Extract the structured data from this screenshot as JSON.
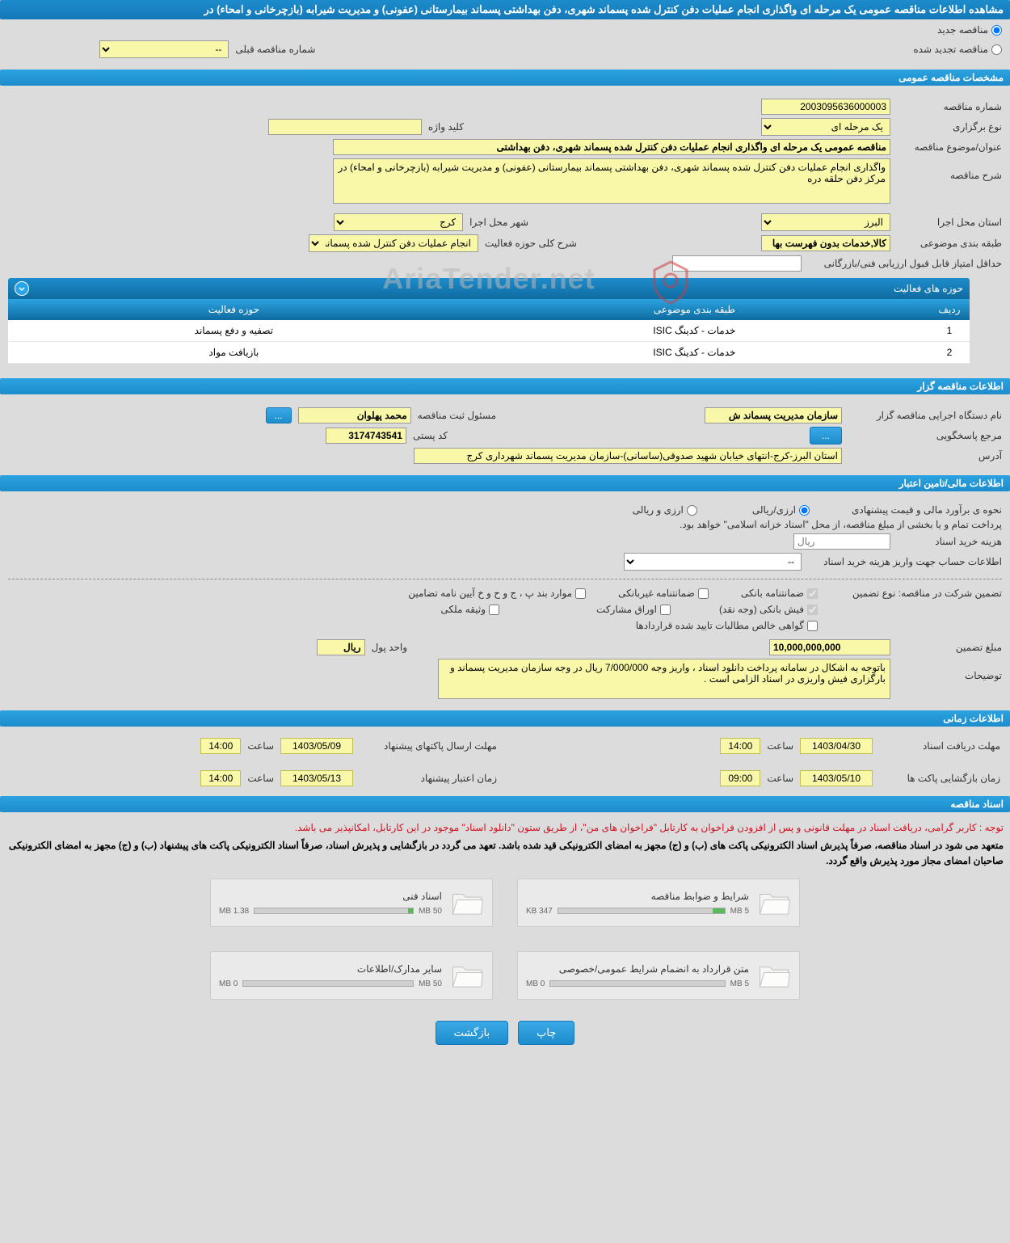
{
  "pageTitle": "مشاهده اطلاعات مناقصه عمومی یک مرحله ای واگذاری انجام عملیات دفن کنترل شده پسماند شهری، دفن بهداشتی پسماند بیمارستانی (عفونی) و مدیریت شیرابه (بازچرخانی و امحاء) در",
  "renewal": {
    "newLabel": "مناقصه جدید",
    "renewedLabel": "مناقصه تجدید شده",
    "prevNumberLabel": "شماره مناقصه قبلی",
    "prevNumberValue": "--"
  },
  "sections": {
    "general": "مشخصات مناقصه عمومی",
    "organizer": "اطلاعات مناقصه گزار",
    "financial": "اطلاعات مالی/تامین اعتبار",
    "timing": "اطلاعات زمانی",
    "docs": "اسناد مناقصه"
  },
  "general": {
    "tenderNoLabel": "شماره مناقصه",
    "tenderNo": "2003095636000003",
    "holdTypeLabel": "نوع برگزاری",
    "holdType": "یک مرحله ای",
    "keywordLabel": "کلید واژه",
    "keyword": "",
    "subjectLabel": "عنوان/موضوع مناقصه",
    "subject": "مناقصه عمومی یک مرحله ای واگذاری انجام عملیات دفن کنترل شده پسماند شهری، دفن بهداشتی",
    "descLabel": "شرح مناقصه",
    "desc": "واگذاری انجام عملیات دفن کنترل شده پسماند شهری، دفن بهداشتی پسماند بیمارستانی (عفونی) و مدیریت شیرابه (بازچرخانی و امحاء) در مرکز دفن حلقه دره",
    "provinceLabel": "استان محل اجرا",
    "province": "البرز",
    "cityLabel": "شهر محل اجرا",
    "city": "کرج",
    "classLabel": "طبقه بندی موضوعی",
    "classValue": "کالا,خدمات بدون فهرست بها",
    "activityGeneralLabel": "شرح کلی حوزه فعالیت",
    "activityGeneral": "انجام عملیات دفن کنترل شده پسماند عادی و دفن",
    "minScoreLabel": "حداقل امتیاز قابل قبول ارزیابی فنی/بازرگانی",
    "minScore": ""
  },
  "activityPanel": {
    "title": "حوزه های فعالیت",
    "cols": {
      "row": "ردیف",
      "class": "طبقه بندی موضوعی",
      "field": "حوزه فعالیت"
    },
    "rows": [
      {
        "n": "1",
        "class": "خدمات - کدینگ ISIC",
        "field": "تصفیه و دفع پسماند"
      },
      {
        "n": "2",
        "class": "خدمات - کدینگ ISIC",
        "field": "بازیافت مواد"
      }
    ]
  },
  "organizer": {
    "orgLabel": "نام دستگاه اجرایی مناقصه گزار",
    "org": "سازمان مدیریت پسماند ش",
    "registrarLabel": "مسئول ثبت مناقصه",
    "registrar": "محمد پهلوان",
    "registrarBtn": "...",
    "responderLabel": "مرجع پاسخگویی",
    "responderBtn": "...",
    "postalLabel": "کد پستی",
    "postal": "3174743541",
    "addressLabel": "آدرس",
    "address": "استان البرز-کرج-انتهای خیابان شهید صدوقی(ساسانی)-سازمان مدیریت پسماند شهرداری کرج"
  },
  "financial": {
    "estimateLabel": "نحوه ی برآورد مالی و قیمت پیشنهادی",
    "rialOpt": "ارزی/ریالی",
    "currencyOpt": "ارزی و ریالی",
    "paymentNote": "پرداخت تمام و یا بخشی از مبلغ مناقصه، از محل \"اسناد خزانه اسلامی\" خواهد بود.",
    "docCostLabel": "هزینه خرید اسناد",
    "docCostUnit": "ریال",
    "accountInfoLabel": "اطلاعات حساب جهت واریز هزینه خرید اسناد",
    "accountInfoValue": "--",
    "guaranteeTypeLabel": "تضمین شرکت در مناقصه:    نوع تضمین",
    "chk": {
      "bankGuarantee": "ضمانتنامه بانکی",
      "nonBankGuarantee": "ضمانتنامه غیربانکی",
      "guaranteeTerms": "موارد بند پ ، ج و ح و خ آیین نامه تضامین",
      "bankReceipt": "فیش بانکی (وجه نقد)",
      "bonds": "اوراق مشارکت",
      "propertyDoc": "وثیقه ملکی",
      "netClaims": "گواهی خالص مطالبات تایید شده قراردادها"
    },
    "guaranteeAmountLabel": "مبلغ تضمین",
    "guaranteeAmount": "10,000,000,000",
    "unitLabel": "واحد پول",
    "unit": "ریال",
    "notesLabel": "توضیحات",
    "notes": "باتوجه به اشکال در سامانه پرداخت دانلود اسناد ، واریز وجه 7/000/000 ریال در وجه سازمان مدیریت پسماند و بارگزاری فیش واریزی در اسناد الزامی است ."
  },
  "timing": {
    "docReceiveLabel": "مهلت دریافت اسناد",
    "docReceiveDate": "1403/04/30",
    "docReceiveTime": "14:00",
    "packetSendLabel": "مهلت ارسال پاکتهای پیشنهاد",
    "packetSendDate": "1403/05/09",
    "packetSendTime": "14:00",
    "openLabel": "زمان بازگشایی پاکت ها",
    "openDate": "1403/05/10",
    "openTime": "09:00",
    "validLabel": "زمان اعتبار پیشنهاد",
    "validDate": "1403/05/13",
    "validTime": "14:00",
    "timeLabel": "ساعت"
  },
  "docs": {
    "notice1": "توجه : کاربر گرامی، دریافت اسناد در مهلت قانونی و پس از افزودن فراخوان به کارتابل \"فراخوان های من\"، از طریق ستون \"دانلود اسناد\" موجود در این کارتابل، امکانپذیر می باشد.",
    "notice2": "متعهد می شود در اسناد مناقصه، صرفاً پذیرش اسناد الکترونیکی پاکت های (ب) و (ج) مجهز به امضای الکترونیکی قید شده باشد. تعهد می گردد در بازگشایی و پذیرش اسناد، صرفاً اسناد الکترونیکی پاکت های پیشنهاد (ب) و (ج) مجهز به امضای الکترونیکی صاحبان امضای مجاز مورد پذیرش واقع گردد.",
    "files": [
      {
        "title": "شرایط و ضوابط مناقصه",
        "used": "347 KB",
        "max": "5 MB",
        "pct": 7
      },
      {
        "title": "اسناد فنی",
        "used": "1.38 MB",
        "max": "50 MB",
        "pct": 3
      },
      {
        "title": "متن قرارداد به انضمام شرایط عمومی/خصوصی",
        "used": "0 MB",
        "max": "5 MB",
        "pct": 0
      },
      {
        "title": "سایر مدارک/اطلاعات",
        "used": "0 MB",
        "max": "50 MB",
        "pct": 0
      }
    ]
  },
  "footer": {
    "print": "چاپ",
    "back": "بازگشت"
  },
  "watermark": "AriaTender.net"
}
